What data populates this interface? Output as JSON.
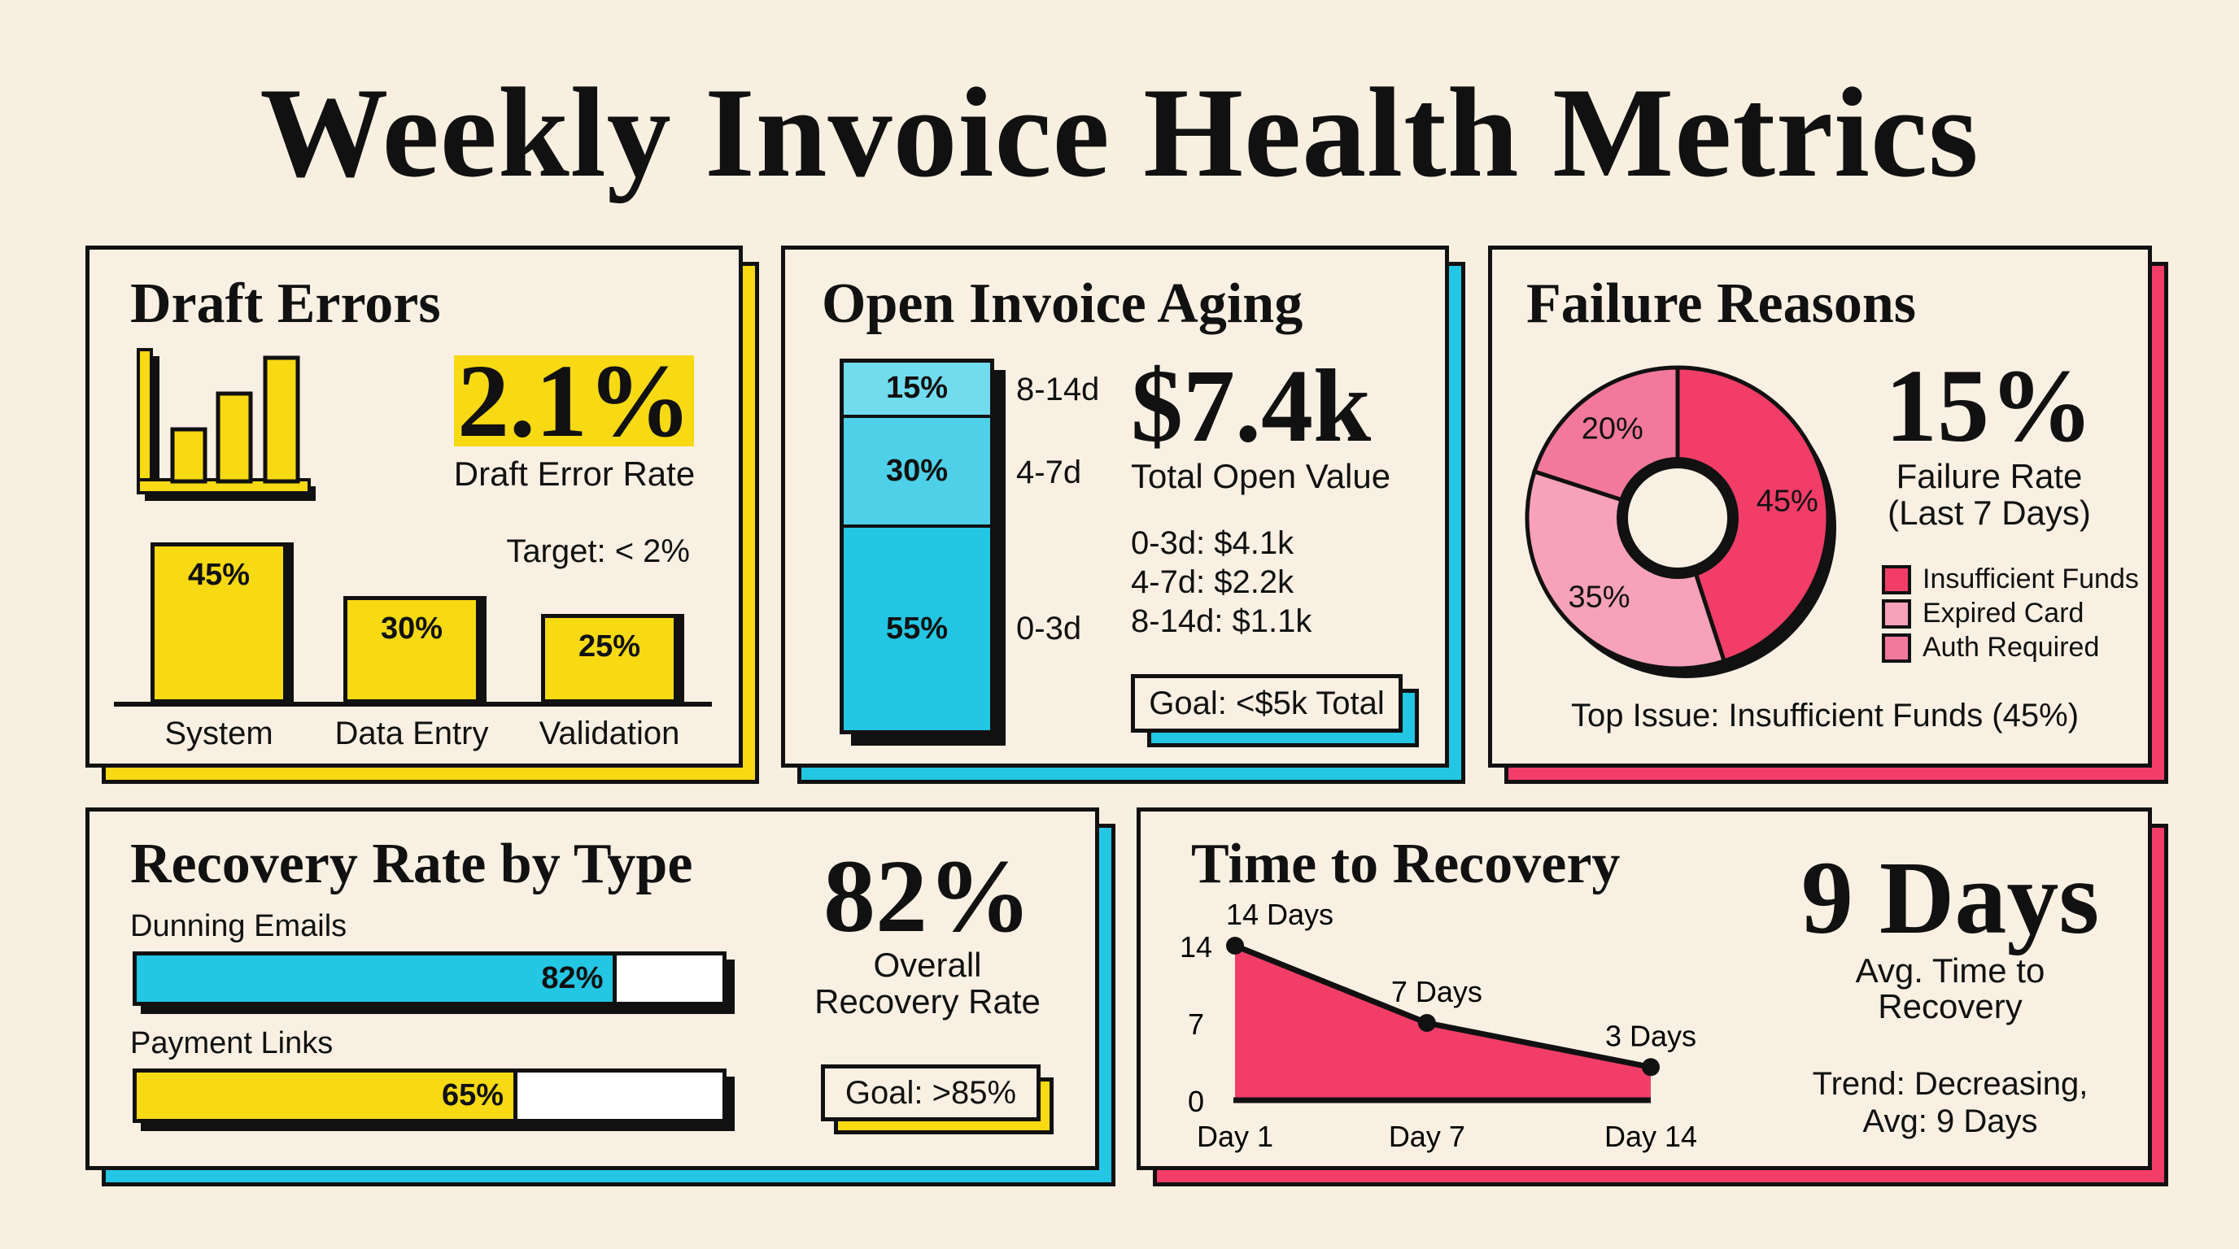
{
  "title": "Weekly Invoice Health Metrics",
  "colors": {
    "background": "#f8efe1",
    "yellow": "#f7d914",
    "cyan": "#23c6e3",
    "red": "#f23d69",
    "ink": "#111111"
  },
  "draft_errors": {
    "title": "Draft Errors",
    "icon": "bar-chart-icon",
    "rate": "2.1%",
    "rate_label": "Draft Error Rate",
    "target": "Target: < 2%"
  },
  "aging": {
    "title": "Open Invoice Aging",
    "total": "$7.4k",
    "total_label": "Total Open Value",
    "breakdown": [
      "0-3d: $4.1k",
      "4-7d: $2.2k",
      "8-14d: $1.1k"
    ],
    "goal": "Goal: <$5k Total"
  },
  "failure": {
    "title": "Failure Reasons",
    "rate": "15%",
    "rate_label_1": "Failure Rate",
    "rate_label_2": "(Last 7 Days)",
    "top_issue": "Top Issue: Insufficient Funds (45%)"
  },
  "recovery": {
    "title": "Recovery Rate by Type",
    "overall": "82%",
    "overall_label_1": "Overall",
    "overall_label_2": "Recovery Rate",
    "goal": "Goal: >85%"
  },
  "time": {
    "title": "Time to Recovery",
    "avg": "9 Days",
    "avg_label_1": "Avg. Time to",
    "avg_label_2": "Recovery",
    "trend_1": "Trend: Decreasing,",
    "trend_2": "Avg: 9 Days"
  },
  "chart_data": [
    {
      "type": "bar",
      "categories": [
        "System",
        "Data Entry",
        "Validation"
      ],
      "values": [
        45,
        30,
        25
      ],
      "data_labels": [
        "45%",
        "30%",
        "25%"
      ],
      "color": "#f7d914"
    },
    {
      "type": "bar",
      "stacked": true,
      "categories": [
        "8-14d",
        "4-7d",
        "0-3d"
      ],
      "values": [
        15,
        30,
        55
      ],
      "data_labels": [
        "15%",
        "30%",
        "55%"
      ],
      "colors": [
        "#72dcef",
        "#4ed0e8",
        "#23c6e3"
      ]
    },
    {
      "type": "pie",
      "donut": true,
      "categories": [
        "Insufficient Funds",
        "Expired Card",
        "Auth Required"
      ],
      "values": [
        45,
        35,
        20
      ],
      "data_labels": [
        "45%",
        "35%",
        "20%"
      ],
      "colors": [
        "#f23d69",
        "#f8a1ba",
        "#f2799b"
      ],
      "legend": "right"
    },
    {
      "type": "bar",
      "orientation": "horizontal",
      "categories": [
        "Dunning Emails",
        "Payment Links"
      ],
      "values": [
        82,
        65
      ],
      "data_labels": [
        "82%",
        "65%"
      ],
      "colors": [
        "#23c6e3",
        "#f7d914"
      ],
      "xlim": [
        0,
        100
      ]
    },
    {
      "type": "area",
      "x": [
        "Day 1",
        "Day 7",
        "Day 14"
      ],
      "x_values": [
        1,
        7,
        14
      ],
      "values": [
        14,
        7,
        3
      ],
      "data_labels": [
        "14 Days",
        "7 Days",
        "3 Days"
      ],
      "yticks": [
        "0",
        "7",
        "14"
      ],
      "ylim": [
        0,
        14
      ],
      "color": "#f23d69"
    }
  ]
}
